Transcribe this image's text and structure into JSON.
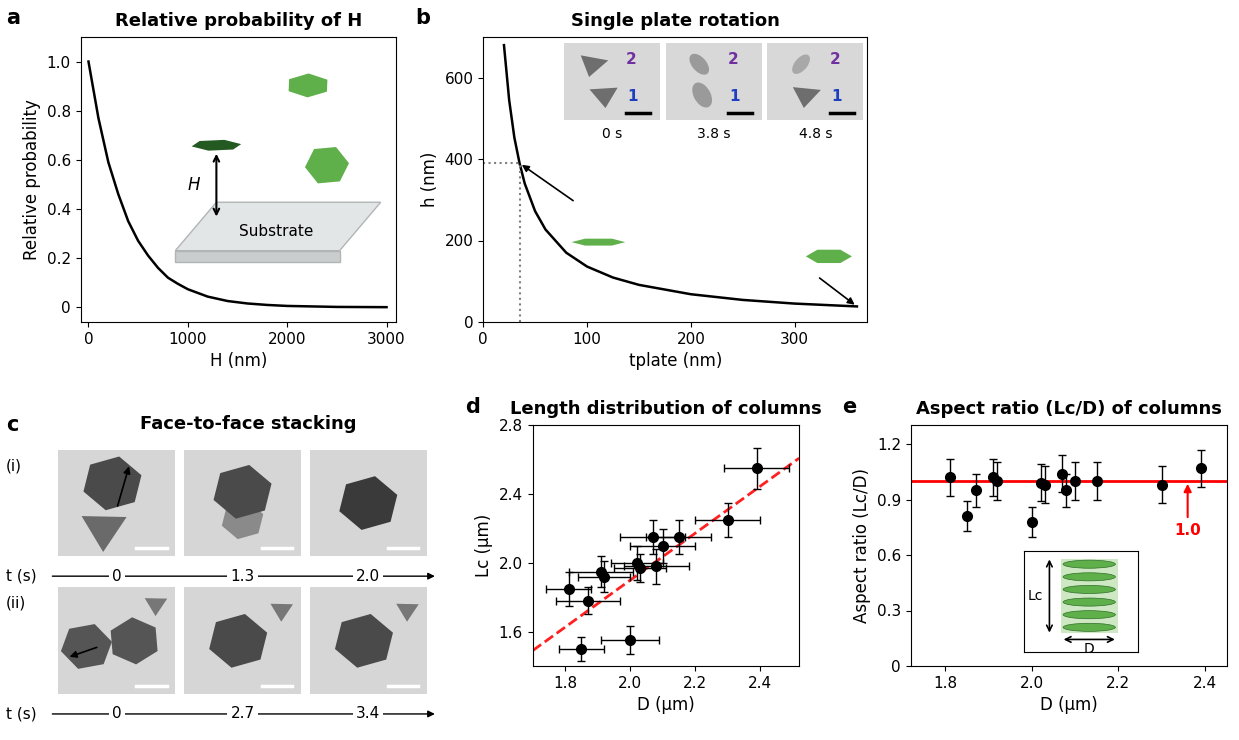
{
  "chart_data": [
    {
      "panel": "a",
      "type": "line",
      "title": "Relative probability of H",
      "x_label": "H (nm)",
      "y_label": "Relative probability",
      "series": [
        {
          "type": "line",
          "color": "#000000",
          "line_style": "solid",
          "x": [
            0,
            100,
            200,
            300,
            400,
            500,
            600,
            700,
            800,
            900,
            1000,
            1200,
            1400,
            1600,
            1800,
            2000,
            2500,
            3000
          ],
          "values": [
            1.0,
            0.77,
            0.59,
            0.46,
            0.35,
            0.27,
            0.21,
            0.16,
            0.12,
            0.095,
            0.073,
            0.043,
            0.025,
            0.015,
            0.009,
            0.005,
            0.001,
            0.0
          ]
        }
      ],
      "xlim": [
        -80,
        3100
      ],
      "ylim": [
        -0.06,
        1.1
      ],
      "xticks": [
        0,
        1000,
        2000,
        3000
      ],
      "yticks": [
        0,
        0.2,
        0.4,
        0.6,
        0.8,
        {
          "value": 1,
          "label": "1.0"
        }
      ],
      "inset_labels": {
        "distance": "H",
        "surface": "Substrate"
      }
    },
    {
      "panel": "b",
      "type": "line",
      "title": "Single plate rotation",
      "x_label": "tplate (nm)",
      "y_label": "h (nm)",
      "series": [
        {
          "type": "line",
          "color": "#000000",
          "line_style": "solid",
          "x": [
            20,
            25,
            30,
            35,
            40,
            50,
            60,
            80,
            100,
            125,
            150,
            200,
            250,
            300,
            360
          ],
          "values": [
            680,
            545,
            453,
            390,
            340,
            272,
            227,
            170,
            136,
            109,
            91,
            68,
            54,
            45,
            38
          ]
        }
      ],
      "reference_point": {
        "x": 35,
        "y": 390
      },
      "xlim": [
        0,
        370
      ],
      "ylim": [
        0,
        700
      ],
      "xticks": [
        0,
        100,
        200,
        300
      ],
      "yticks": [
        0,
        200,
        400,
        600
      ],
      "frames": [
        "0 s",
        "3.8 s",
        "4.8 s"
      ],
      "particle_labels": [
        {
          "text": "1",
          "color": "#1f3fbf"
        },
        {
          "text": "2",
          "color": "#7030a0"
        }
      ]
    },
    {
      "panel": "c",
      "type": "image_sequence",
      "title": "Face-to-face stacking",
      "time_label": "t (s)",
      "rows": [
        {
          "label": "(i)",
          "times": [
            0,
            1.3,
            2.0
          ]
        },
        {
          "label": "(ii)",
          "times": [
            0,
            2.7,
            3.4
          ]
        }
      ]
    },
    {
      "panel": "d",
      "type": "scatter",
      "title": "Length distribution of columns",
      "x_label": "D (μm)",
      "y_label": "Lc (μm)",
      "series": [
        {
          "type": "scatter",
          "color": "#000000",
          "marker": "circle",
          "x": [
            1.81,
            1.85,
            1.87,
            1.91,
            1.92,
            2.0,
            2.02,
            2.03,
            2.07,
            2.08,
            2.1,
            2.15,
            2.3,
            2.39
          ],
          "values": [
            1.85,
            1.5,
            1.78,
            1.95,
            1.92,
            1.55,
            2.0,
            1.97,
            2.15,
            1.98,
            2.1,
            2.15,
            2.25,
            2.55
          ],
          "xerr": [
            0.07,
            0.07,
            0.1,
            0.1,
            0.08,
            0.09,
            0.08,
            0.08,
            0.1,
            0.1,
            0.1,
            0.1,
            0.1,
            0.1
          ],
          "yerr": [
            0.1,
            0.07,
            0.08,
            0.09,
            0.09,
            0.08,
            0.1,
            0.08,
            0.1,
            0.1,
            0.1,
            0.1,
            0.1,
            0.12
          ]
        },
        {
          "type": "line",
          "color": "#ff2020",
          "line_style": "dashed",
          "x": [
            1.7,
            2.52
          ],
          "values": [
            1.49,
            2.61
          ]
        }
      ],
      "xlim": [
        1.7,
        2.52
      ],
      "ylim": [
        1.4,
        2.8
      ],
      "xticks": [
        1.8,
        2.0,
        2.2,
        2.4
      ],
      "yticks": [
        1.6,
        2.0,
        2.4,
        2.8
      ]
    },
    {
      "panel": "e",
      "type": "scatter",
      "title": "Aspect ratio (Lc/D) of columns",
      "x_label": "D (μm)",
      "y_label": "Aspect ratio (Lc/D)",
      "series": [
        {
          "type": "scatter",
          "color": "#000000",
          "marker": "circle",
          "x": [
            1.81,
            1.85,
            1.87,
            1.91,
            1.92,
            2.0,
            2.02,
            2.03,
            2.07,
            2.08,
            2.1,
            2.15,
            2.3,
            2.39
          ],
          "values": [
            1.02,
            0.81,
            0.95,
            1.02,
            1.0,
            0.78,
            0.99,
            0.98,
            1.04,
            0.95,
            1.0,
            1.0,
            0.98,
            1.07
          ],
          "yerr": [
            0.1,
            0.08,
            0.09,
            0.1,
            0.1,
            0.08,
            0.1,
            0.1,
            0.1,
            0.09,
            0.1,
            0.1,
            0.1,
            0.1
          ]
        }
      ],
      "reference_line": {
        "y": 1.0,
        "label": "1.0",
        "color": "#ff0000"
      },
      "xlim": [
        1.72,
        2.45
      ],
      "ylim": [
        0,
        1.3
      ],
      "xticks": [
        1.8,
        2.0,
        2.2,
        2.4
      ],
      "yticks": [
        0,
        0.3,
        0.6,
        0.9,
        1.2
      ],
      "inset_labels": {
        "height": "Lc",
        "width": "D"
      }
    }
  ]
}
